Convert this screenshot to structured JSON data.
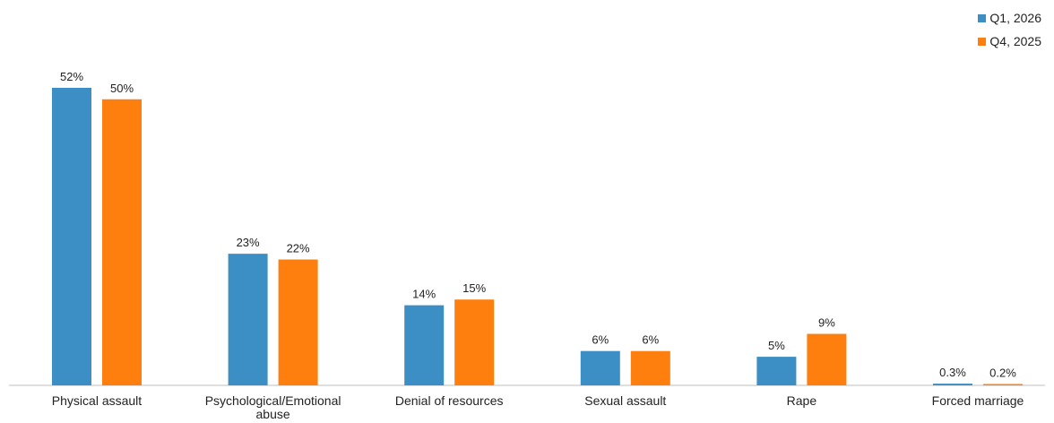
{
  "chart_data": {
    "type": "bar",
    "title": "",
    "xlabel": "",
    "ylabel": "",
    "ylim": [
      0,
      60
    ],
    "grid": false,
    "legend_position": "top-right",
    "categories": [
      [
        "Physical assault"
      ],
      [
        "Psychological/Emotional",
        "abuse"
      ],
      [
        "Denial of resources"
      ],
      [
        "Sexual assault"
      ],
      [
        "Rape"
      ],
      [
        "Forced marriage"
      ]
    ],
    "series": [
      {
        "name": "Q1, 2026",
        "color": "#3b8fc4",
        "values": [
          52,
          23,
          14,
          6,
          5,
          0.3
        ],
        "labels": [
          "52%",
          "23%",
          "14%",
          "6%",
          "5%",
          "0.3%"
        ]
      },
      {
        "name": "Q4, 2025",
        "color": "#ff7f0e",
        "values": [
          50,
          22,
          15,
          6,
          9,
          0.2
        ],
        "labels": [
          "50%",
          "22%",
          "15%",
          "6%",
          "9%",
          "0.2%"
        ]
      }
    ]
  }
}
